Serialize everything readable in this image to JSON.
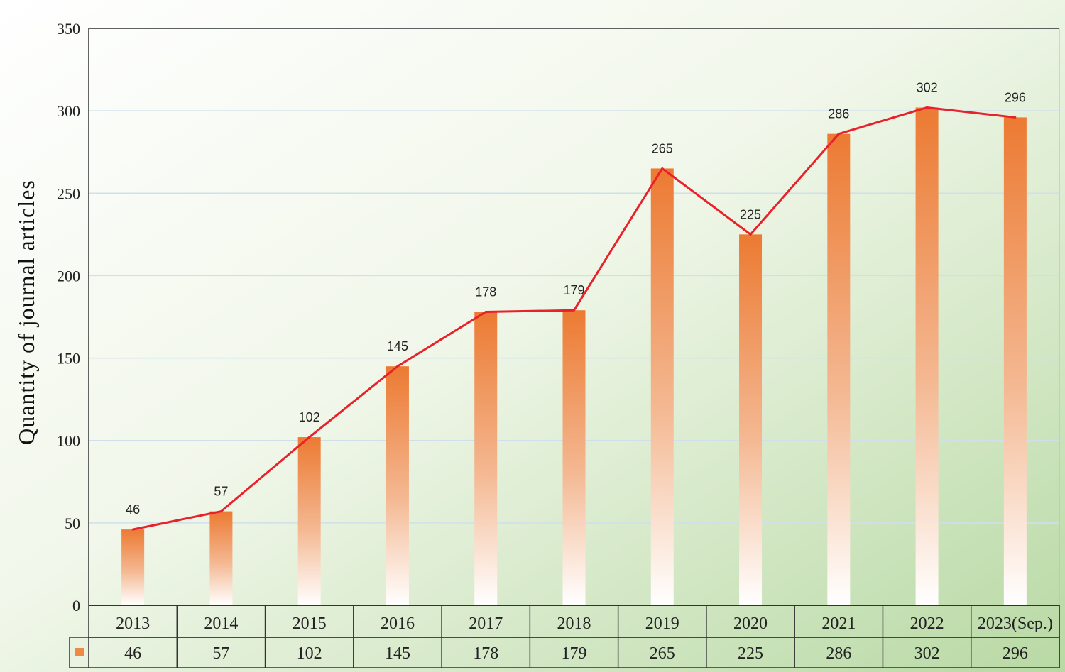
{
  "chart_data": {
    "type": "bar",
    "title": "",
    "xlabel": "",
    "ylabel": "Quantity of journal articles",
    "ylim": [
      0,
      350
    ],
    "yticks": [
      0,
      50,
      100,
      150,
      200,
      250,
      300,
      350
    ],
    "grid": true,
    "categories": [
      "2013",
      "2014",
      "2015",
      "2016",
      "2017",
      "2018",
      "2019",
      "2020",
      "2021",
      "2022",
      "2023(Sep.)"
    ],
    "series": [
      {
        "name": "",
        "render": "bar+line",
        "values": [
          46,
          57,
          102,
          145,
          178,
          179,
          265,
          225,
          286,
          302,
          296
        ]
      }
    ],
    "data_table": true
  },
  "colors": {
    "bar_top": "#ec7a32",
    "bar_bottom": "#ffffff",
    "trend_line": "#e8212a",
    "gridline": "#cfe0ea",
    "axis": "#333333",
    "bg_light": "#ffffff",
    "bg_green": "#b8d9a4",
    "legend_marker": "#ef8a45"
  }
}
